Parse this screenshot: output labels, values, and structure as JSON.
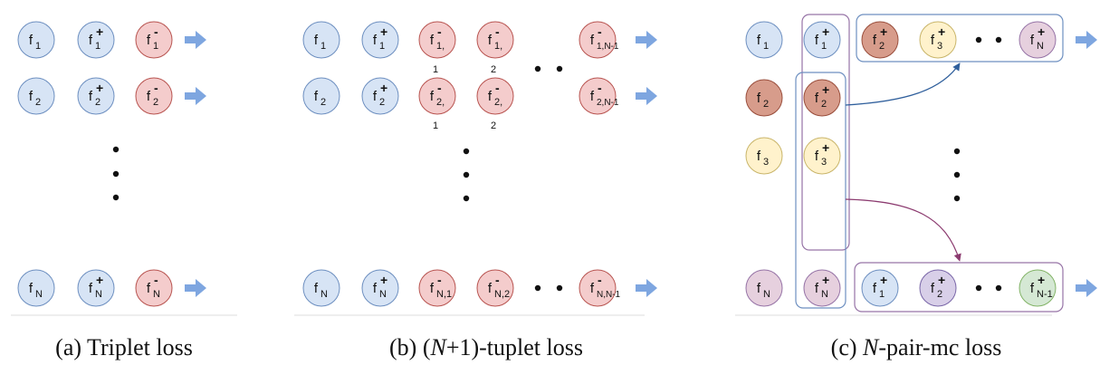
{
  "captions": {
    "a": "(a)  Triplet loss",
    "b_prefix": "(b)  (",
    "b_var": "N",
    "b_suffix": "+1)-tuplet loss",
    "c_prefix": "(c)  ",
    "c_var": "N",
    "c_suffix": "-pair-mc loss"
  },
  "colors": {
    "blue": "#d7e4f5",
    "blue_stroke": "#6d8fc0",
    "red": "#f4cccc",
    "red_stroke": "#b85450",
    "darkred": "#d79c8b",
    "darkred_stroke": "#9a4f3d",
    "yellow": "#fff2cc",
    "yellow_stroke": "#c9b56a",
    "pink": "#e6d0de",
    "pink_stroke": "#9673a6",
    "purple": "#d8cfe8",
    "purple_stroke": "#7a67a8",
    "green": "#d5e8d4",
    "green_stroke": "#82b366",
    "arrow": "#7ea6e0",
    "link_blue": "#2f5f9c",
    "link_purple": "#8b3a6f"
  },
  "panel_a": {
    "rows": [
      [
        {
          "base": "f",
          "sub": "1",
          "sup": "",
          "color": "blue"
        },
        {
          "base": "f",
          "sub": "1",
          "sup": "+",
          "color": "blue"
        },
        {
          "base": "f",
          "sub": "1",
          "sup": "-",
          "color": "red"
        }
      ],
      [
        {
          "base": "f",
          "sub": "2",
          "sup": "",
          "color": "blue"
        },
        {
          "base": "f",
          "sub": "2",
          "sup": "+",
          "color": "blue"
        },
        {
          "base": "f",
          "sub": "2",
          "sup": "-",
          "color": "red"
        }
      ],
      [
        {
          "base": "f",
          "sub": "N",
          "sup": "",
          "color": "blue"
        },
        {
          "base": "f",
          "sub": "N",
          "sup": "+",
          "color": "blue"
        },
        {
          "base": "f",
          "sub": "N",
          "sup": "-",
          "color": "red"
        }
      ]
    ]
  },
  "panel_b": {
    "rows": [
      [
        {
          "base": "f",
          "sub": "1",
          "sup": "",
          "color": "blue"
        },
        {
          "base": "f",
          "sub": "1",
          "sup": "+",
          "color": "blue"
        },
        {
          "base": "f",
          "sub": "1,",
          "sup": "-",
          "under": "1",
          "color": "red"
        },
        {
          "base": "f",
          "sub": "1,",
          "sup": "-",
          "under": "2",
          "color": "red"
        },
        {
          "base": "f",
          "sub": "1,N-1",
          "sup": "-",
          "color": "red"
        }
      ],
      [
        {
          "base": "f",
          "sub": "2",
          "sup": "",
          "color": "blue"
        },
        {
          "base": "f",
          "sub": "2",
          "sup": "+",
          "color": "blue"
        },
        {
          "base": "f",
          "sub": "2,",
          "sup": "-",
          "under": "1",
          "color": "red"
        },
        {
          "base": "f",
          "sub": "2,",
          "sup": "-",
          "under": "2",
          "color": "red"
        },
        {
          "base": "f",
          "sub": "2,N-1",
          "sup": "-",
          "color": "red"
        }
      ],
      [
        {
          "base": "f",
          "sub": "N",
          "sup": "",
          "color": "blue"
        },
        {
          "base": "f",
          "sub": "N",
          "sup": "+",
          "color": "blue"
        },
        {
          "base": "f",
          "sub": "N,1",
          "sup": "-",
          "color": "red"
        },
        {
          "base": "f",
          "sub": "N,2",
          "sup": "-",
          "color": "red"
        },
        {
          "base": "f",
          "sub": "N,N-1",
          "sup": "-",
          "color": "red"
        }
      ]
    ]
  },
  "panel_c": {
    "anchors": [
      {
        "base": "f",
        "sub": "1",
        "sup": "",
        "color": "blue"
      },
      {
        "base": "f",
        "sub": "2",
        "sup": "",
        "color": "darkred"
      },
      {
        "base": "f",
        "sub": "3",
        "sup": "",
        "color": "yellow"
      },
      {
        "base": "f",
        "sub": "N",
        "sup": "",
        "color": "pink"
      }
    ],
    "positives": [
      {
        "base": "f",
        "sub": "1",
        "sup": "+",
        "color": "blue"
      },
      {
        "base": "f",
        "sub": "2",
        "sup": "+",
        "color": "darkred"
      },
      {
        "base": "f",
        "sub": "3",
        "sup": "+",
        "color": "yellow"
      },
      {
        "base": "f",
        "sub": "N",
        "sup": "+",
        "color": "pink"
      }
    ],
    "top_group": [
      {
        "base": "f",
        "sub": "2",
        "sup": "+",
        "color": "darkred"
      },
      {
        "base": "f",
        "sub": "3",
        "sup": "+",
        "color": "yellow"
      },
      {
        "base": "f",
        "sub": "N",
        "sup": "+",
        "color": "pink"
      }
    ],
    "bottom_group": [
      {
        "base": "f",
        "sub": "1",
        "sup": "+",
        "color": "blue"
      },
      {
        "base": "f",
        "sub": "2",
        "sup": "+",
        "color": "purple"
      },
      {
        "base": "f",
        "sub": "N-1",
        "sup": "+",
        "color": "green"
      }
    ]
  }
}
